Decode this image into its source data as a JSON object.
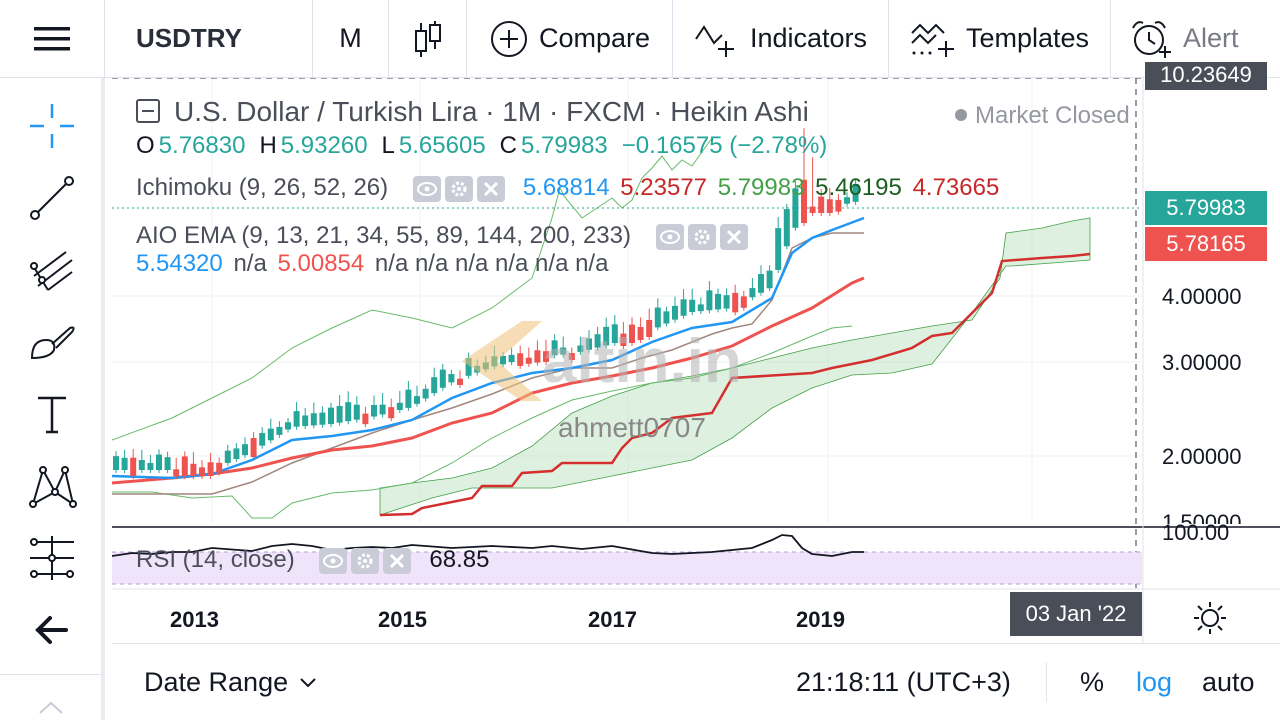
{
  "toolbar": {
    "symbol": "USDTRY",
    "interval": "M",
    "compare_label": "Compare",
    "indicators_label": "Indicators",
    "templates_label": "Templates",
    "alert_label": "Alert"
  },
  "legend": {
    "title": "U.S. Dollar / Turkish Lira · 1M · FXCM · Heikin Ashi",
    "status": "Market Closed",
    "ohlc": {
      "o_label": "O",
      "o": "5.76830",
      "h_label": "H",
      "h": "5.93260",
      "l_label": "L",
      "l": "5.65605",
      "c_label": "C",
      "c": "5.79983",
      "change": "−0.16575 (−2.78%)"
    },
    "ichimoku": {
      "name": "Ichimoku (9, 26, 52, 26)",
      "v1": "5.68814",
      "v2": "5.23577",
      "v3": "5.79983",
      "v4": "5.46195",
      "v5": "4.73665"
    },
    "ema": {
      "name": "AIO EMA (9, 13, 21, 34, 55, 89, 144, 200, 233)",
      "v1": "5.54320",
      "v2": "n/a",
      "v3": "5.00854",
      "rest": "n/a n/a n/a n/a n/a n/a"
    },
    "rsi": {
      "name": "RSI (14, close)",
      "value": "68.85"
    }
  },
  "watermark": {
    "brand": "altin.in",
    "user": "ahmett0707"
  },
  "price_axis": {
    "top_partial": "10.23649",
    "last_price": "5.79983",
    "prev_price": "5.78165",
    "ticks": [
      "4.00000",
      "3.00000",
      "2.00000",
      "1.50000"
    ],
    "rsi_tick": "100.00"
  },
  "time_axis": {
    "years": [
      "2013",
      "2015",
      "2017",
      "2019"
    ],
    "crosshair_label": "03 Jan '22"
  },
  "bottom": {
    "date_range": "Date Range",
    "clock": "21:18:11 (UTC+3)",
    "percent": "%",
    "log": "log",
    "auto": "auto"
  },
  "colors": {
    "green": "#26a69a",
    "red": "#ef5350",
    "blue": "#2196f3",
    "dark_red": "#8b0000",
    "ichimoku_green": "#43a047",
    "rsi_band": "#f0e4fa"
  }
}
